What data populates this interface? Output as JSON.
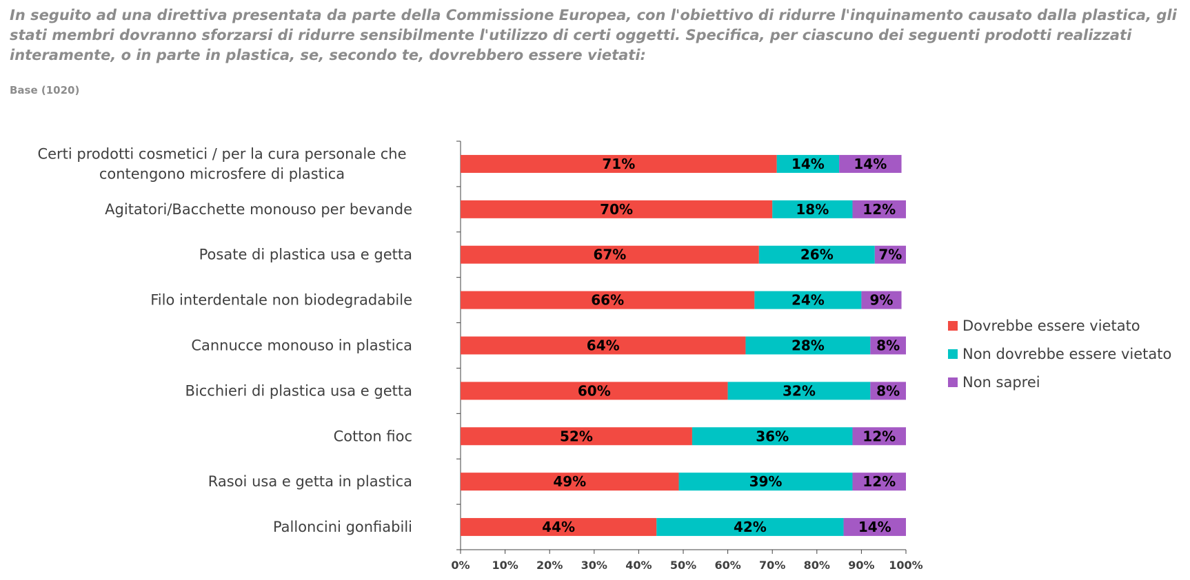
{
  "question": "In seguito ad una direttiva presentata da parte della Commissione Europea, con l'obiettivo di ridurre l'inquinamento causato dalla plastica, gli stati membri dovranno sforzarsi di ridurre sensibilmente l'utilizzo di certi oggetti. Specifica, per ciascuno dei seguenti prodotti realizzati interamente, o in parte in plastica, se, secondo te, dovrebbero essere vietati:",
  "base": "Base (1020)",
  "chart_data": {
    "type": "bar",
    "orientation": "horizontal",
    "stacked": "percent",
    "categories": [
      [
        "Certi prodotti cosmetici / per la cura personale che",
        "contengono microsfere di plastica"
      ],
      [
        "Agitatori/Bacchette monouso per bevande"
      ],
      [
        "Posate di plastica usa e getta"
      ],
      [
        "Filo interdentale non biodegradabile"
      ],
      [
        "Cannucce monouso in plastica"
      ],
      [
        "Bicchieri di plastica usa e getta"
      ],
      [
        "Cotton fioc"
      ],
      [
        "Rasoi usa e getta in plastica"
      ],
      [
        "Palloncini gonfiabili"
      ]
    ],
    "series": [
      {
        "name": "Dovrebbe essere vietato",
        "color": "#f24a42",
        "values": [
          71,
          70,
          67,
          66,
          64,
          60,
          52,
          49,
          44
        ]
      },
      {
        "name": "Non dovrebbe essere vietato",
        "color": "#00c4c4",
        "values": [
          14,
          18,
          26,
          24,
          28,
          32,
          36,
          39,
          42
        ]
      },
      {
        "name": "Non saprei",
        "color": "#a459c4",
        "values": [
          14,
          12,
          7,
          9,
          8,
          8,
          12,
          12,
          14
        ]
      }
    ],
    "xlim": [
      0,
      100
    ],
    "xticks": [
      "0%",
      "10%",
      "20%",
      "30%",
      "40%",
      "50%",
      "60%",
      "70%",
      "80%",
      "90%",
      "100%"
    ],
    "legend_position": "right",
    "grid": false
  }
}
